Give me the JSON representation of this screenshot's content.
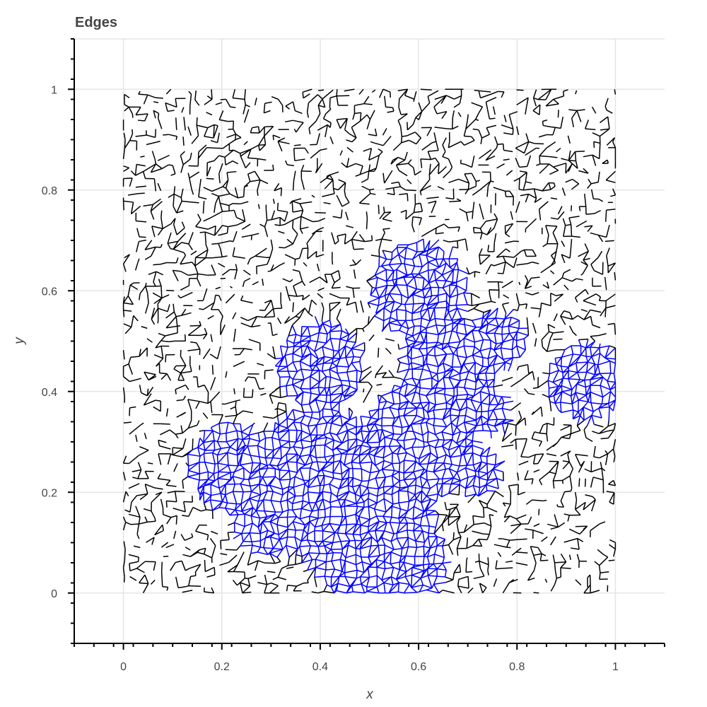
{
  "chart_data": {
    "type": "line",
    "title": "Edges",
    "xlabel": "x",
    "ylabel": "y",
    "xlim": [
      -0.1,
      1.1
    ],
    "ylim": [
      -0.1,
      1.1
    ],
    "x_ticks": [
      "0",
      "0.2",
      "0.4",
      "0.6",
      "0.8",
      "1"
    ],
    "y_ticks": [
      "0",
      "0.2",
      "0.4",
      "0.6",
      "0.8",
      "1"
    ],
    "grid": true,
    "legend": "none",
    "series": [
      {
        "color": "#000000",
        "kind": "segments"
      },
      {
        "color": "#0000ff",
        "kind": "segments"
      }
    ]
  }
}
